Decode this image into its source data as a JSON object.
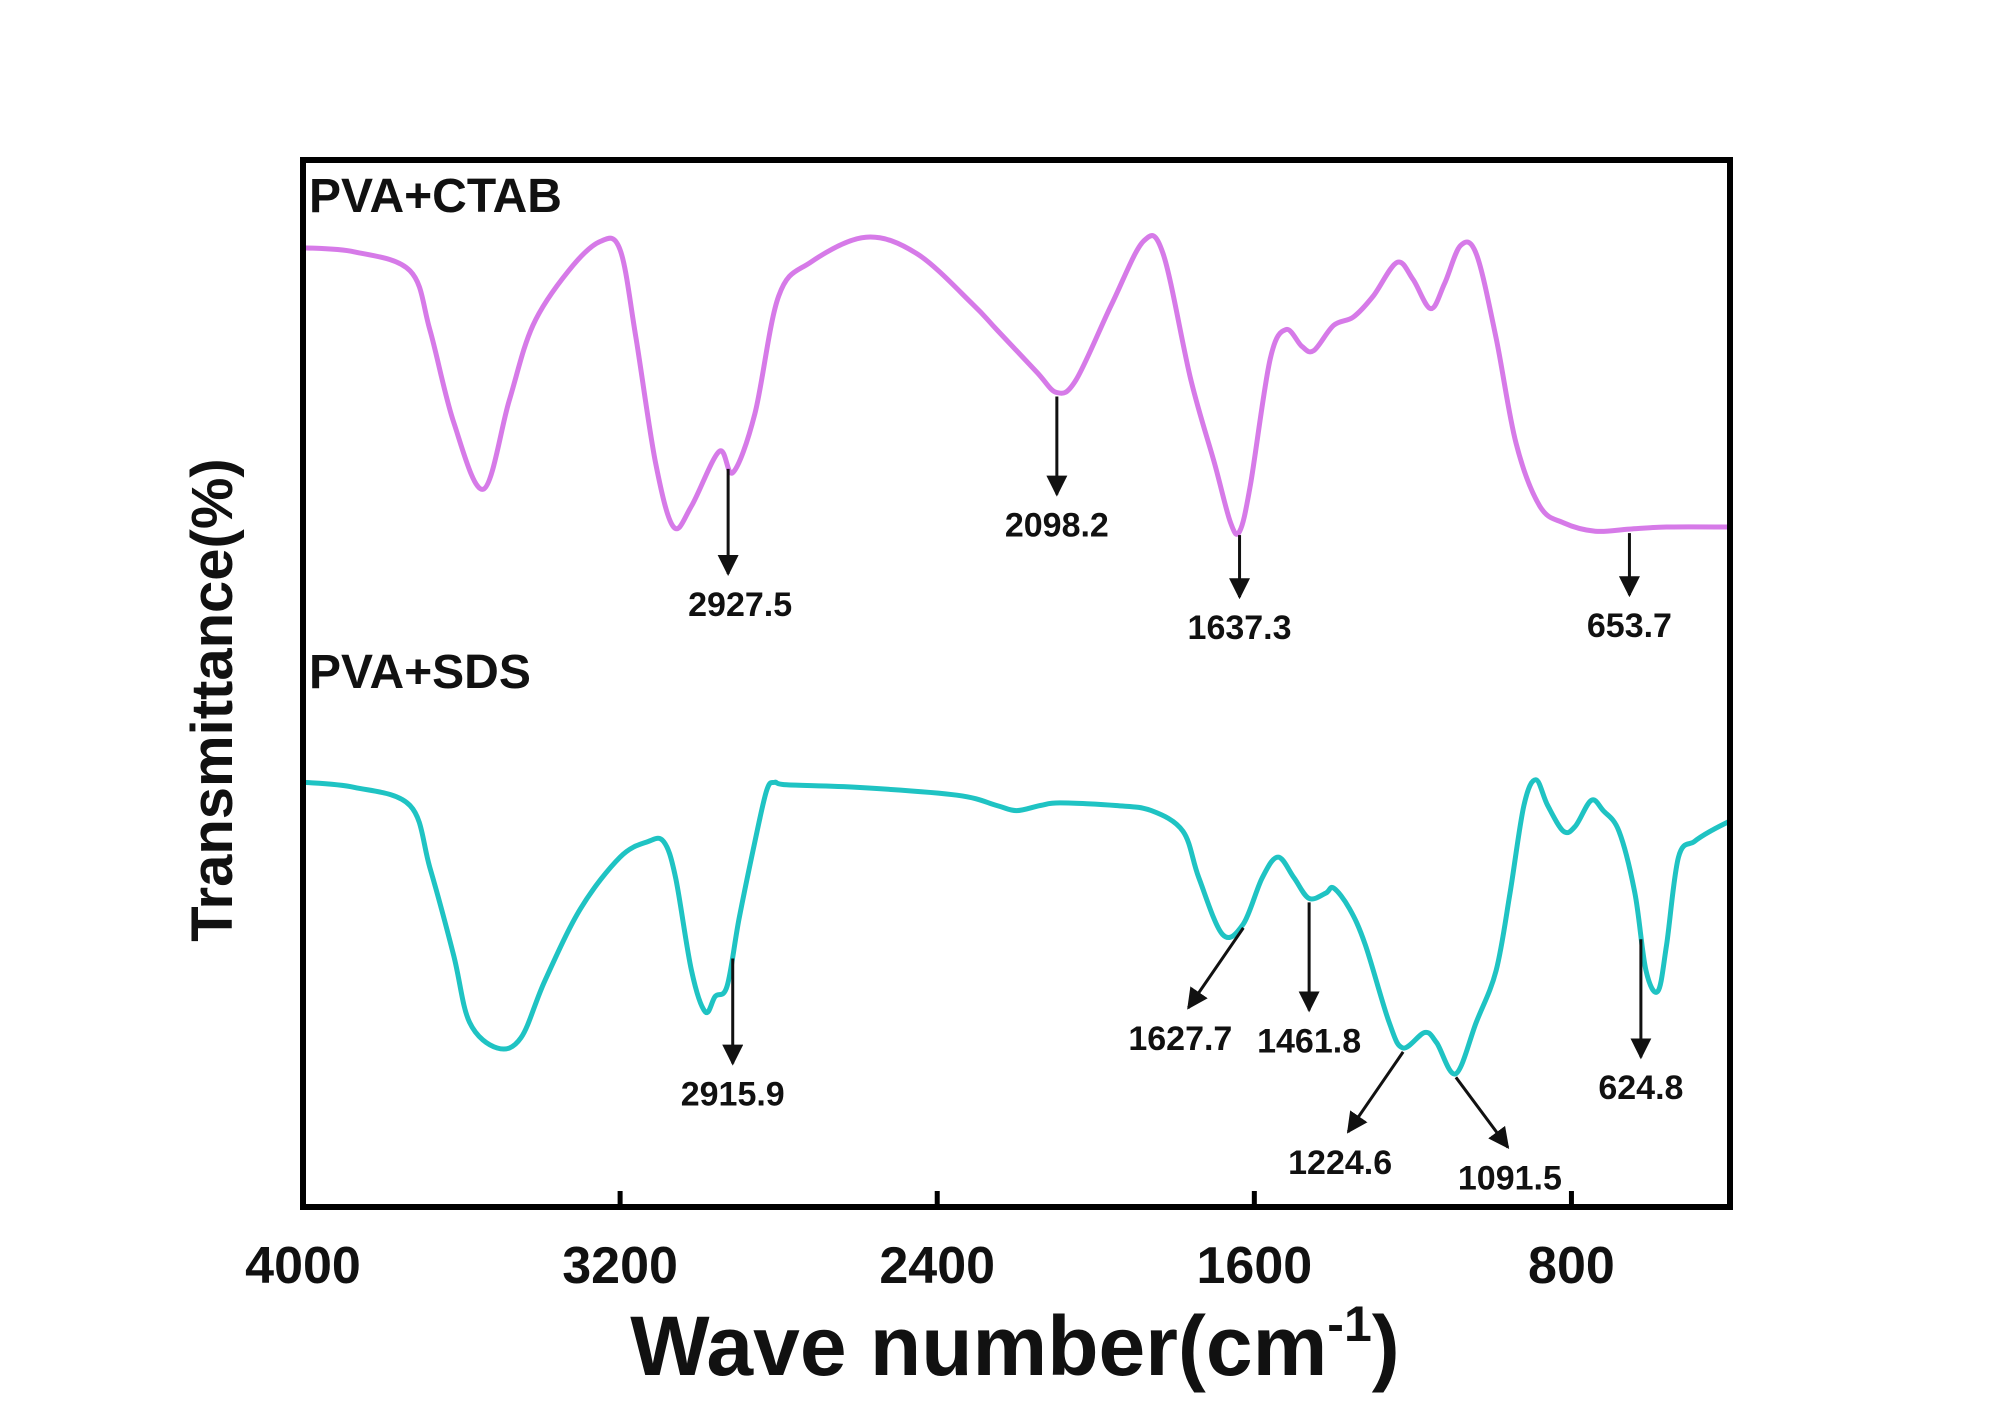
{
  "chart_data": {
    "type": "line",
    "title": "",
    "xlabel": "Wave number(cm",
    "xlabel_sup": "-1",
    "xlabel_close": ")",
    "ylabel": "Transmittance(%)",
    "xlim": [
      4000,
      400
    ],
    "x_reversed": true,
    "x_ticks": [
      4000,
      3200,
      2400,
      1600,
      800
    ],
    "y_ticks": [],
    "series": [
      {
        "name": "PVA+CTAB",
        "color": "#d67ae8",
        "points": [
          [
            4000,
            0.915
          ],
          [
            3870,
            0.905
          ],
          [
            3730,
            0.86
          ],
          [
            3680,
            0.72
          ],
          [
            3620,
            0.5
          ],
          [
            3545,
            0.34
          ],
          [
            3480,
            0.55
          ],
          [
            3420,
            0.73
          ],
          [
            3330,
            0.86
          ],
          [
            3250,
            0.93
          ],
          [
            3200,
            0.91
          ],
          [
            3160,
            0.7
          ],
          [
            3110,
            0.4
          ],
          [
            3065,
            0.25
          ],
          [
            3020,
            0.3
          ],
          [
            2950,
            0.43
          ],
          [
            2915,
            0.38
          ],
          [
            2860,
            0.52
          ],
          [
            2800,
            0.8
          ],
          [
            2720,
            0.88
          ],
          [
            2580,
            0.94
          ],
          [
            2450,
            0.9
          ],
          [
            2310,
            0.78
          ],
          [
            2250,
            0.72
          ],
          [
            2150,
            0.62
          ],
          [
            2098,
            0.57
          ],
          [
            2050,
            0.6
          ],
          [
            1960,
            0.78
          ],
          [
            1880,
            0.93
          ],
          [
            1830,
            0.9
          ],
          [
            1760,
            0.6
          ],
          [
            1700,
            0.4
          ],
          [
            1660,
            0.26
          ],
          [
            1637,
            0.24
          ],
          [
            1610,
            0.35
          ],
          [
            1560,
            0.65
          ],
          [
            1520,
            0.72
          ],
          [
            1480,
            0.68
          ],
          [
            1450,
            0.67
          ],
          [
            1400,
            0.73
          ],
          [
            1350,
            0.75
          ],
          [
            1300,
            0.8
          ],
          [
            1240,
            0.88
          ],
          [
            1200,
            0.84
          ],
          [
            1155,
            0.77
          ],
          [
            1120,
            0.83
          ],
          [
            1080,
            0.92
          ],
          [
            1040,
            0.9
          ],
          [
            990,
            0.7
          ],
          [
            940,
            0.45
          ],
          [
            880,
            0.3
          ],
          [
            820,
            0.26
          ],
          [
            740,
            0.24
          ],
          [
            654,
            0.245
          ],
          [
            560,
            0.25
          ],
          [
            400,
            0.25
          ]
        ]
      },
      {
        "name": "PVA+SDS",
        "color": "#1fc3c3",
        "points": [
          [
            4000,
            0.515
          ],
          [
            3870,
            0.505
          ],
          [
            3730,
            0.47
          ],
          [
            3680,
            0.35
          ],
          [
            3620,
            0.18
          ],
          [
            3580,
            0.05
          ],
          [
            3510,
            0.0
          ],
          [
            3450,
            0.02
          ],
          [
            3390,
            0.13
          ],
          [
            3300,
            0.27
          ],
          [
            3200,
            0.37
          ],
          [
            3130,
            0.4
          ],
          [
            3090,
            0.4
          ],
          [
            3060,
            0.33
          ],
          [
            3020,
            0.15
          ],
          [
            2985,
            0.07
          ],
          [
            2960,
            0.1
          ],
          [
            2930,
            0.12
          ],
          [
            2900,
            0.25
          ],
          [
            2860,
            0.4
          ],
          [
            2830,
            0.5
          ],
          [
            2810,
            0.515
          ],
          [
            2780,
            0.51
          ],
          [
            2600,
            0.505
          ],
          [
            2350,
            0.49
          ],
          [
            2250,
            0.47
          ],
          [
            2200,
            0.46
          ],
          [
            2140,
            0.47
          ],
          [
            2090,
            0.475
          ],
          [
            1950,
            0.47
          ],
          [
            1860,
            0.46
          ],
          [
            1780,
            0.42
          ],
          [
            1740,
            0.33
          ],
          [
            1680,
            0.22
          ],
          [
            1628,
            0.24
          ],
          [
            1580,
            0.33
          ],
          [
            1540,
            0.37
          ],
          [
            1500,
            0.33
          ],
          [
            1462,
            0.29
          ],
          [
            1420,
            0.3
          ],
          [
            1400,
            0.31
          ],
          [
            1360,
            0.27
          ],
          [
            1320,
            0.2
          ],
          [
            1260,
            0.05
          ],
          [
            1225,
            0.0
          ],
          [
            1170,
            0.03
          ],
          [
            1140,
            0.01
          ],
          [
            1092,
            -0.05
          ],
          [
            1040,
            0.05
          ],
          [
            990,
            0.15
          ],
          [
            955,
            0.3
          ],
          [
            920,
            0.47
          ],
          [
            890,
            0.52
          ],
          [
            860,
            0.47
          ],
          [
            820,
            0.42
          ],
          [
            790,
            0.43
          ],
          [
            750,
            0.48
          ],
          [
            720,
            0.46
          ],
          [
            680,
            0.42
          ],
          [
            640,
            0.3
          ],
          [
            612,
            0.15
          ],
          [
            582,
            0.11
          ],
          [
            560,
            0.2
          ],
          [
            530,
            0.37
          ],
          [
            490,
            0.4
          ],
          [
            450,
            0.42
          ],
          [
            400,
            0.44
          ]
        ]
      }
    ],
    "series_labels": [
      "PVA+CTAB",
      "PVA+SDS"
    ],
    "annotations": [
      {
        "text": "2927.5",
        "series": 0,
        "x": 2927.5,
        "style": "down"
      },
      {
        "text": "2098.2",
        "series": 0,
        "x": 2098.2,
        "style": "down"
      },
      {
        "text": "1637.3",
        "series": 0,
        "x": 1637.3,
        "style": "down"
      },
      {
        "text": "653.7",
        "series": 0,
        "x": 653.7,
        "style": "down"
      },
      {
        "text": "2915.9",
        "series": 1,
        "x": 2915.9,
        "style": "down"
      },
      {
        "text": "1627.7",
        "series": 1,
        "x": 1627.7,
        "style": "down-left"
      },
      {
        "text": "1461.8",
        "series": 1,
        "x": 1461.8,
        "style": "down"
      },
      {
        "text": "1224.6",
        "series": 1,
        "x": 1224.6,
        "style": "down-left"
      },
      {
        "text": "1091.5",
        "series": 1,
        "x": 1091.5,
        "style": "down-right"
      },
      {
        "text": "624.8",
        "series": 1,
        "x": 624.8,
        "style": "down"
      }
    ],
    "legend": "none",
    "grid": false
  }
}
